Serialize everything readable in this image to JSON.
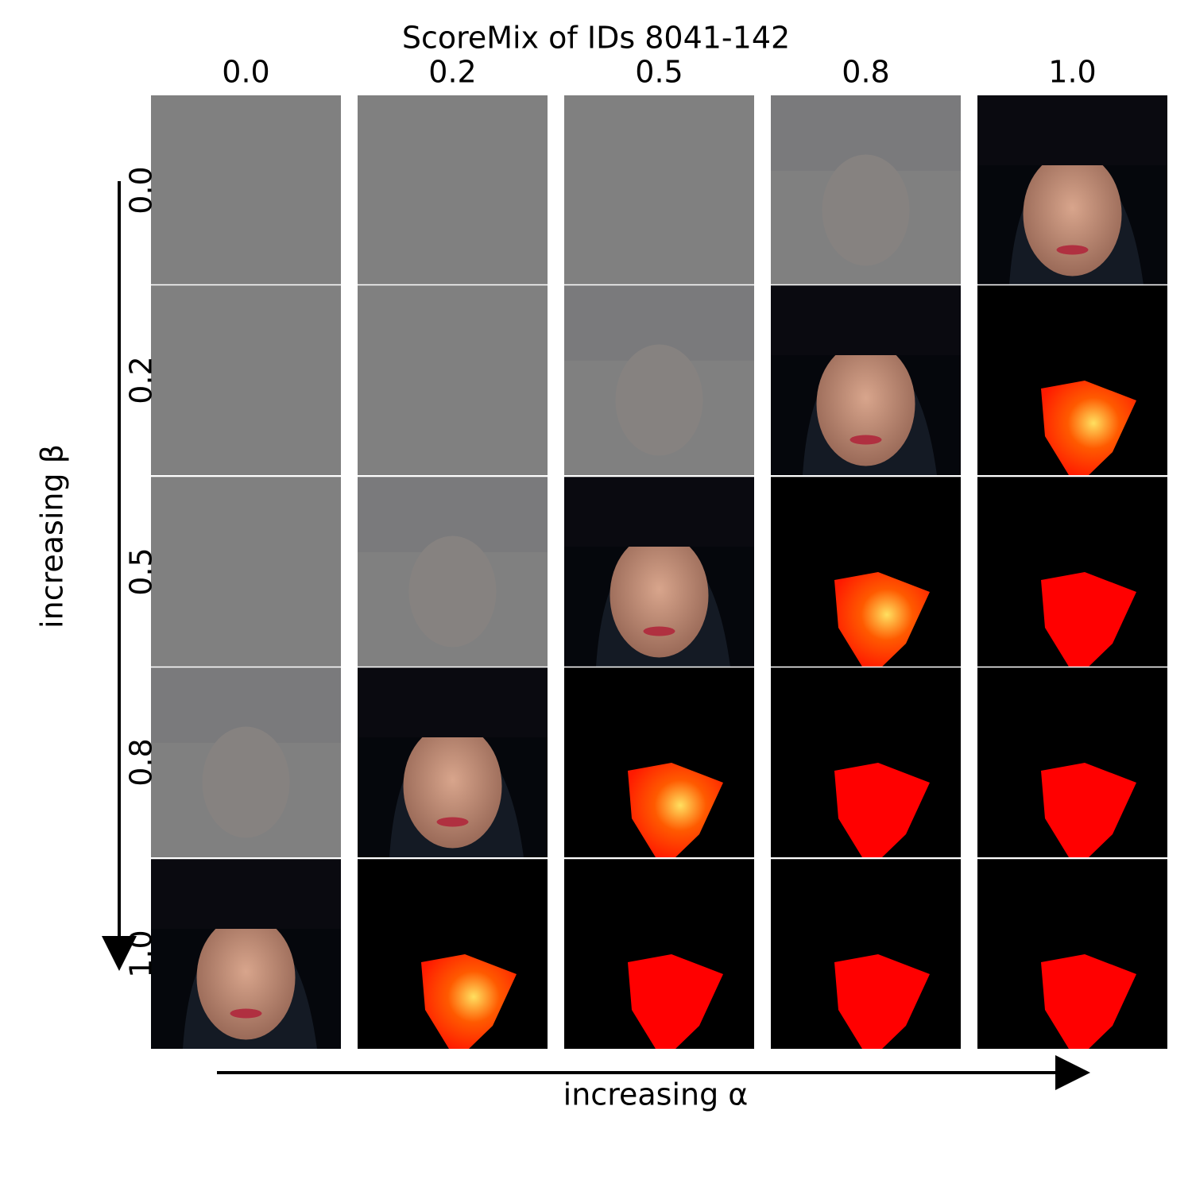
{
  "title": "ScoreMix of IDs 8041-142",
  "columns": [
    "0.0",
    "0.2",
    "0.5",
    "0.8",
    "1.0"
  ],
  "rows": [
    "0.0",
    "0.2",
    "0.5",
    "0.8",
    "1.0"
  ],
  "x_axis_label": "increasing α",
  "y_axis_label": "increasing β"
}
